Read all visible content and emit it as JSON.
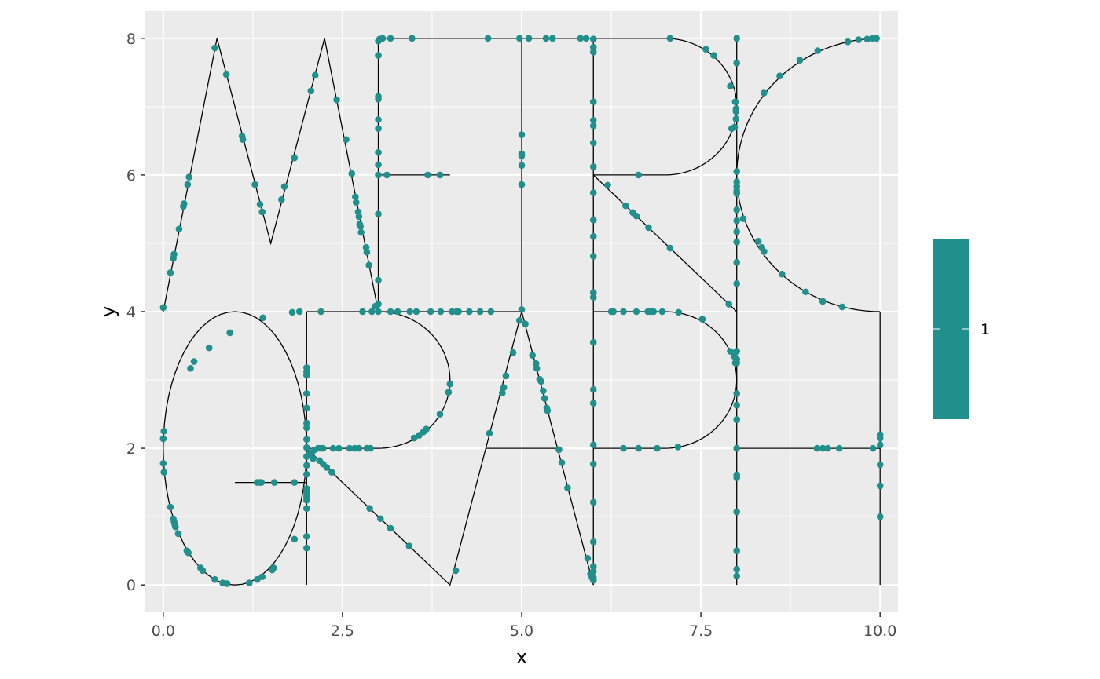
{
  "chart_data": {
    "type": "scatter",
    "title": "",
    "xlabel": "x",
    "ylabel": "y",
    "xlim": [
      -0.25,
      10.25
    ],
    "ylim": [
      -0.4,
      8.4
    ],
    "x_ticks": [
      0,
      2.5,
      5,
      7.5,
      10
    ],
    "x_tick_labels": [
      "0.0",
      "2.5",
      "5.0",
      "7.5",
      "10.0"
    ],
    "y_ticks": [
      0,
      2,
      4,
      6,
      8
    ],
    "y_tick_labels": [
      "0",
      "2",
      "4",
      "6",
      "8"
    ],
    "grid": true,
    "legend": {
      "position": "right",
      "label": "1"
    },
    "colors": {
      "panel": "#EBEBEB",
      "grid": "#FFFFFF",
      "point": "#21908C",
      "path": "#000000"
    },
    "path_segments": [
      {
        "shape": "polyline",
        "points": [
          [
            0,
            4
          ],
          [
            0.75,
            8
          ],
          [
            1.5,
            5
          ],
          [
            2.25,
            8
          ],
          [
            3,
            4
          ]
        ]
      },
      {
        "shape": "polyline",
        "points": [
          [
            3,
            4
          ],
          [
            3,
            8
          ],
          [
            5,
            8
          ]
        ]
      },
      {
        "shape": "polyline",
        "points": [
          [
            3,
            6
          ],
          [
            4,
            6
          ]
        ]
      },
      {
        "shape": "polyline",
        "points": [
          [
            3,
            4
          ],
          [
            5,
            4
          ]
        ]
      },
      {
        "shape": "polyline",
        "points": [
          [
            5,
            4
          ],
          [
            5,
            8
          ]
        ]
      },
      {
        "shape": "polyline",
        "points": [
          [
            5,
            8
          ],
          [
            7,
            8
          ]
        ]
      },
      {
        "shape": "arc",
        "cx": 7,
        "cy": 7,
        "rx": 1,
        "ry": 1,
        "a0": 90,
        "a1": -90
      },
      {
        "shape": "polyline",
        "points": [
          [
            7,
            6
          ],
          [
            6,
            6
          ]
        ]
      },
      {
        "shape": "polyline",
        "points": [
          [
            6,
            8
          ],
          [
            6,
            0
          ]
        ]
      },
      {
        "shape": "polyline",
        "points": [
          [
            6,
            6
          ],
          [
            8,
            4
          ]
        ]
      },
      {
        "shape": "polyline",
        "points": [
          [
            8,
            8
          ],
          [
            8,
            0
          ]
        ]
      },
      {
        "shape": "arc",
        "cx": 10,
        "cy": 6,
        "rx": 2,
        "ry": 2,
        "a0": 90,
        "a1": 270
      },
      {
        "shape": "polyline",
        "points": [
          [
            10,
            4
          ],
          [
            10,
            0
          ]
        ]
      },
      {
        "shape": "polyline",
        "points": [
          [
            8,
            2
          ],
          [
            10,
            2
          ]
        ]
      },
      {
        "shape": "arc",
        "cx": 1,
        "cy": 2,
        "rx": 1,
        "ry": 2,
        "a0": 0,
        "a1": 360
      },
      {
        "shape": "polyline",
        "points": [
          [
            1,
            1.5
          ],
          [
            2,
            1.5
          ]
        ]
      },
      {
        "shape": "polyline",
        "points": [
          [
            2,
            4
          ],
          [
            2,
            0
          ]
        ]
      },
      {
        "shape": "polyline",
        "points": [
          [
            2,
            4
          ],
          [
            3,
            4
          ]
        ]
      },
      {
        "shape": "arc",
        "cx": 3,
        "cy": 3,
        "rx": 1,
        "ry": 1,
        "a0": 90,
        "a1": -90
      },
      {
        "shape": "polyline",
        "points": [
          [
            3,
            2
          ],
          [
            2,
            2
          ],
          [
            4,
            0
          ],
          [
            5,
            4
          ],
          [
            6,
            0
          ]
        ]
      },
      {
        "shape": "polyline",
        "points": [
          [
            4.5,
            2
          ],
          [
            5.5,
            2
          ]
        ]
      },
      {
        "shape": "polyline",
        "points": [
          [
            6,
            4
          ],
          [
            7,
            4
          ]
        ]
      },
      {
        "shape": "arc",
        "cx": 7,
        "cy": 3,
        "rx": 1,
        "ry": 1,
        "a0": 90,
        "a1": -90
      },
      {
        "shape": "polyline",
        "points": [
          [
            7,
            2
          ],
          [
            6,
            2
          ]
        ]
      }
    ],
    "points": [
      [
        0.0,
        4.06
      ],
      [
        0.1,
        4.57
      ],
      [
        0.14,
        4.78
      ],
      [
        0.15,
        4.84
      ],
      [
        0.22,
        5.21
      ],
      [
        0.28,
        5.54
      ],
      [
        0.29,
        5.58
      ],
      [
        0.34,
        5.86
      ],
      [
        0.36,
        5.97
      ],
      [
        0.72,
        7.86
      ],
      [
        0.88,
        7.47
      ],
      [
        1.1,
        6.57
      ],
      [
        1.11,
        6.52
      ],
      [
        1.28,
        5.86
      ],
      [
        1.35,
        5.57
      ],
      [
        1.38,
        5.46
      ],
      [
        1.65,
        5.64
      ],
      [
        1.69,
        5.83
      ],
      [
        1.83,
        6.25
      ],
      [
        2.06,
        7.23
      ],
      [
        2.12,
        7.46
      ],
      [
        2.42,
        7.1
      ],
      [
        2.55,
        6.52
      ],
      [
        2.63,
        6.02
      ],
      [
        2.68,
        5.68
      ],
      [
        2.69,
        5.6
      ],
      [
        2.72,
        5.46
      ],
      [
        2.73,
        5.39
      ],
      [
        2.74,
        5.28
      ],
      [
        2.75,
        5.25
      ],
      [
        2.76,
        5.16
      ],
      [
        2.83,
        4.94
      ],
      [
        2.84,
        4.87
      ],
      [
        2.87,
        4.68
      ],
      [
        2.96,
        4.08
      ],
      [
        3.0,
        4.11
      ],
      [
        3.0,
        4.46
      ],
      [
        3.0,
        5.43
      ],
      [
        3.0,
        6.0
      ],
      [
        3.0,
        6.15
      ],
      [
        3.0,
        6.33
      ],
      [
        3.0,
        6.68
      ],
      [
        3.0,
        6.81
      ],
      [
        3.0,
        7.11
      ],
      [
        3.0,
        7.15
      ],
      [
        3.0,
        7.75
      ],
      [
        3.0,
        7.96
      ],
      [
        3.02,
        7.99
      ],
      [
        3.06,
        8.0
      ],
      [
        3.17,
        8.0
      ],
      [
        3.47,
        8.0
      ],
      [
        4.53,
        8.0
      ],
      [
        4.97,
        8.0
      ],
      [
        5.1,
        8.0
      ],
      [
        5.34,
        8.0
      ],
      [
        5.43,
        8.0
      ],
      [
        5.82,
        8.0
      ],
      [
        5.9,
        8.0
      ],
      [
        3.12,
        6.0
      ],
      [
        3.69,
        6.0
      ],
      [
        3.86,
        6.0
      ],
      [
        2.78,
        4.0
      ],
      [
        2.91,
        4.0
      ],
      [
        3.0,
        4.0
      ],
      [
        3.17,
        4.0
      ],
      [
        3.27,
        4.0
      ],
      [
        3.44,
        4.0
      ],
      [
        3.53,
        4.0
      ],
      [
        3.73,
        4.0
      ],
      [
        3.87,
        4.0
      ],
      [
        4.03,
        4.0
      ],
      [
        4.09,
        4.0
      ],
      [
        4.12,
        4.0
      ],
      [
        4.27,
        4.0
      ],
      [
        4.42,
        4.0
      ],
      [
        4.57,
        4.0
      ],
      [
        5.0,
        4.03
      ],
      [
        5.0,
        5.86
      ],
      [
        5.0,
        6.14
      ],
      [
        5.0,
        6.28
      ],
      [
        5.0,
        6.31
      ],
      [
        5.0,
        6.59
      ],
      [
        6.0,
        0.07
      ],
      [
        6.0,
        0.11
      ],
      [
        6.0,
        0.2
      ],
      [
        6.0,
        0.27
      ],
      [
        6.0,
        0.63
      ],
      [
        6.0,
        1.21
      ],
      [
        6.0,
        1.77
      ],
      [
        6.0,
        2.05
      ],
      [
        6.0,
        2.66
      ],
      [
        6.0,
        2.86
      ],
      [
        6.0,
        3.55
      ],
      [
        6.0,
        4.21
      ],
      [
        6.0,
        4.28
      ],
      [
        6.0,
        4.81
      ],
      [
        6.0,
        5.1
      ],
      [
        6.0,
        5.34
      ],
      [
        6.0,
        5.74
      ],
      [
        6.0,
        6.12
      ],
      [
        6.0,
        6.47
      ],
      [
        6.0,
        6.72
      ],
      [
        6.0,
        6.8
      ],
      [
        6.0,
        7.07
      ],
      [
        6.0,
        7.8
      ],
      [
        6.0,
        7.87
      ],
      [
        6.0,
        7.99
      ],
      [
        6.63,
        6.0
      ],
      [
        7.07,
        8.0
      ],
      [
        7.57,
        7.84
      ],
      [
        7.68,
        7.75
      ],
      [
        7.91,
        7.3
      ],
      [
        7.98,
        7.07
      ],
      [
        7.99,
        6.97
      ],
      [
        7.99,
        6.93
      ],
      [
        7.99,
        6.82
      ],
      [
        7.93,
        6.68
      ],
      [
        7.97,
        6.7
      ],
      [
        6.2,
        5.85
      ],
      [
        6.45,
        5.55
      ],
      [
        6.55,
        5.45
      ],
      [
        6.6,
        5.4
      ],
      [
        6.77,
        5.23
      ],
      [
        7.07,
        4.93
      ],
      [
        7.89,
        4.11
      ],
      [
        8.0,
        0.13
      ],
      [
        8.0,
        0.23
      ],
      [
        8.0,
        0.5
      ],
      [
        8.0,
        1.07
      ],
      [
        8.0,
        1.57
      ],
      [
        8.0,
        1.61
      ],
      [
        8.0,
        2.0
      ],
      [
        8.0,
        2.42
      ],
      [
        8.0,
        2.63
      ],
      [
        8.0,
        2.8
      ],
      [
        8.0,
        3.25
      ],
      [
        8.0,
        3.3
      ],
      [
        8.0,
        3.42
      ],
      [
        8.0,
        4.41
      ],
      [
        8.0,
        4.72
      ],
      [
        8.0,
        5.02
      ],
      [
        8.0,
        5.17
      ],
      [
        8.0,
        5.33
      ],
      [
        8.0,
        5.49
      ],
      [
        8.0,
        5.73
      ],
      [
        8.0,
        5.77
      ],
      [
        8.0,
        5.83
      ],
      [
        8.0,
        5.9
      ],
      [
        8.0,
        6.05
      ],
      [
        8.0,
        7.64
      ],
      [
        8.0,
        8.0
      ],
      [
        8.09,
        5.36
      ],
      [
        8.3,
        5.03
      ],
      [
        8.35,
        4.94
      ],
      [
        8.38,
        4.88
      ],
      [
        8.63,
        4.55
      ],
      [
        8.96,
        4.29
      ],
      [
        9.2,
        4.15
      ],
      [
        9.47,
        4.07
      ],
      [
        8.38,
        7.2
      ],
      [
        8.6,
        7.45
      ],
      [
        8.88,
        7.68
      ],
      [
        9.13,
        7.82
      ],
      [
        9.55,
        7.95
      ],
      [
        9.7,
        7.98
      ],
      [
        9.82,
        7.99
      ],
      [
        9.89,
        8.0
      ],
      [
        9.95,
        8.0
      ],
      [
        10.0,
        1.0
      ],
      [
        10.0,
        1.45
      ],
      [
        10.0,
        1.76
      ],
      [
        10.0,
        2.05
      ],
      [
        10.0,
        2.15
      ],
      [
        10.0,
        2.2
      ],
      [
        9.12,
        2.0
      ],
      [
        9.2,
        2.0
      ],
      [
        9.27,
        2.0
      ],
      [
        9.43,
        2.0
      ],
      [
        9.9,
        2.0
      ],
      [
        0.0,
        2.14
      ],
      [
        0.01,
        2.25
      ],
      [
        0.0,
        1.78
      ],
      [
        0.01,
        1.65
      ],
      [
        0.1,
        1.14
      ],
      [
        0.14,
        0.97
      ],
      [
        0.15,
        0.93
      ],
      [
        0.16,
        0.89
      ],
      [
        0.17,
        0.85
      ],
      [
        0.21,
        0.75
      ],
      [
        0.33,
        0.5
      ],
      [
        0.35,
        0.47
      ],
      [
        0.52,
        0.25
      ],
      [
        0.55,
        0.21
      ],
      [
        0.72,
        0.08
      ],
      [
        0.83,
        0.03
      ],
      [
        0.89,
        0.02
      ],
      [
        1.2,
        0.03
      ],
      [
        1.31,
        0.08
      ],
      [
        1.38,
        0.12
      ],
      [
        1.52,
        0.22
      ],
      [
        1.54,
        0.25
      ],
      [
        1.83,
        0.67
      ],
      [
        0.38,
        3.17
      ],
      [
        0.43,
        3.27
      ],
      [
        0.64,
        3.47
      ],
      [
        0.93,
        3.69
      ],
      [
        1.39,
        3.91
      ],
      [
        1.8,
        3.99
      ],
      [
        1.9,
        4.0
      ],
      [
        2.2,
        4.0
      ],
      [
        1.31,
        1.5
      ],
      [
        1.35,
        1.5
      ],
      [
        1.37,
        1.5
      ],
      [
        1.55,
        1.5
      ],
      [
        1.83,
        1.5
      ],
      [
        2.0,
        0.54
      ],
      [
        2.0,
        0.71
      ],
      [
        2.0,
        1.12
      ],
      [
        2.0,
        1.24
      ],
      [
        2.0,
        1.29
      ],
      [
        2.0,
        1.35
      ],
      [
        2.0,
        1.41
      ],
      [
        2.0,
        1.62
      ],
      [
        2.0,
        1.75
      ],
      [
        2.0,
        1.88
      ],
      [
        2.0,
        2.01
      ],
      [
        2.0,
        2.13
      ],
      [
        2.0,
        2.3
      ],
      [
        2.0,
        2.37
      ],
      [
        2.0,
        2.59
      ],
      [
        2.0,
        2.8
      ],
      [
        2.0,
        3.07
      ],
      [
        2.0,
        3.12
      ],
      [
        2.0,
        3.18
      ],
      [
        2.04,
        1.92
      ],
      [
        2.09,
        1.85
      ],
      [
        2.1,
        1.97
      ],
      [
        2.16,
        2.0
      ],
      [
        2.2,
        2.0
      ],
      [
        2.23,
        2.0
      ],
      [
        2.37,
        2.0
      ],
      [
        2.45,
        2.0
      ],
      [
        2.6,
        2.0
      ],
      [
        2.67,
        2.0
      ],
      [
        2.73,
        2.0
      ],
      [
        2.84,
        2.0
      ],
      [
        2.89,
        2.0
      ],
      [
        2.18,
        1.82
      ],
      [
        2.23,
        1.77
      ],
      [
        2.28,
        1.72
      ],
      [
        2.35,
        1.65
      ],
      [
        2.88,
        1.12
      ],
      [
        3.03,
        0.97
      ],
      [
        3.17,
        0.83
      ],
      [
        3.43,
        0.57
      ],
      [
        4.08,
        0.21
      ],
      [
        3.5,
        2.15
      ],
      [
        3.57,
        2.19
      ],
      [
        3.63,
        2.24
      ],
      [
        3.67,
        2.28
      ],
      [
        3.86,
        2.5
      ],
      [
        3.98,
        2.82
      ],
      [
        4.0,
        2.94
      ],
      [
        4.55,
        2.22
      ],
      [
        4.73,
        2.81
      ],
      [
        4.75,
        2.89
      ],
      [
        4.78,
        3.06
      ],
      [
        4.88,
        3.4
      ],
      [
        4.97,
        3.87
      ],
      [
        5.05,
        3.82
      ],
      [
        5.15,
        3.36
      ],
      [
        5.2,
        3.24
      ],
      [
        5.21,
        3.17
      ],
      [
        5.25,
        3.01
      ],
      [
        5.27,
        2.98
      ],
      [
        5.3,
        2.84
      ],
      [
        5.32,
        2.73
      ],
      [
        5.35,
        2.59
      ],
      [
        5.36,
        2.55
      ],
      [
        5.52,
        1.98
      ],
      [
        5.56,
        1.79
      ],
      [
        5.64,
        1.42
      ],
      [
        5.92,
        0.39
      ],
      [
        5.96,
        0.16
      ],
      [
        5.98,
        0.11
      ],
      [
        6.25,
        4.0
      ],
      [
        6.28,
        4.0
      ],
      [
        6.42,
        4.0
      ],
      [
        6.6,
        4.0
      ],
      [
        6.76,
        4.0
      ],
      [
        6.8,
        4.0
      ],
      [
        6.84,
        4.0
      ],
      [
        6.96,
        4.0
      ],
      [
        7.19,
        3.99
      ],
      [
        7.52,
        3.89
      ],
      [
        7.91,
        3.42
      ],
      [
        7.96,
        3.35
      ],
      [
        7.98,
        3.25
      ],
      [
        6.42,
        2.0
      ],
      [
        6.63,
        2.0
      ],
      [
        6.89,
        2.0
      ],
      [
        7.18,
        2.02
      ]
    ]
  }
}
